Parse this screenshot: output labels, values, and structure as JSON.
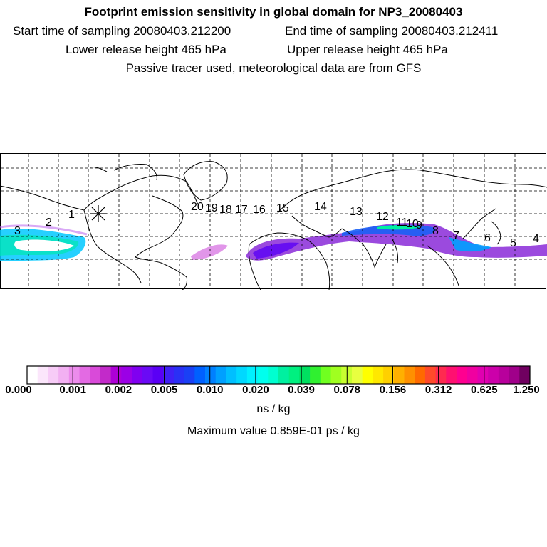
{
  "header": {
    "title": "Footprint emission sensitivity in global domain for NP3_20080403",
    "start_time": "Start time of sampling 20080403.212200",
    "end_time": "End time of sampling 20080403.212411",
    "lower_height": "Lower release height  465 hPa",
    "upper_height": "Upper release height  465 hPa",
    "tracer_note": "Passive tracer used, meteorological data are from GFS"
  },
  "map": {
    "receptor_marker": "asterisk-icon",
    "trajectory_labels": [
      "1",
      "2",
      "3",
      "4",
      "5",
      "6",
      "7",
      "8",
      "9",
      "10",
      "11",
      "12",
      "13",
      "14",
      "15",
      "16",
      "17",
      "18",
      "19",
      "20"
    ]
  },
  "colorbar": {
    "tick_labels": [
      "0.000",
      "0.001",
      "0.002",
      "0.005",
      "0.010",
      "0.020",
      "0.039",
      "0.078",
      "0.156",
      "0.312",
      "0.625",
      "1.250"
    ],
    "unit": "ns / kg",
    "max_value": "Maximum value  0.859E-01 ps / kg",
    "colors": [
      "#ffffff",
      "#fbe6fb",
      "#f7ccf7",
      "#f2b0f2",
      "#ec8cec",
      "#e36ae3",
      "#d94ad9",
      "#c22ac9",
      "#ad00d6",
      "#9b00e6",
      "#8000f0",
      "#6a0af5",
      "#5a00f5",
      "#4020f5",
      "#2a30f5",
      "#1a40f5",
      "#0060ff",
      "#0080ff",
      "#00a0ff",
      "#00bfff",
      "#00d8ff",
      "#00f0ff",
      "#00ffee",
      "#00ffd0",
      "#00f0a0",
      "#00f080",
      "#00e060",
      "#30f030",
      "#70ff20",
      "#a0ff20",
      "#c8ff30",
      "#e8ff40",
      "#ffff00",
      "#ffe800",
      "#ffd000",
      "#ffb000",
      "#ff9000",
      "#ff6a00",
      "#ff4a2a",
      "#ff2a50",
      "#ff1070",
      "#ff0090",
      "#f000a0",
      "#e000b0",
      "#cc00aa",
      "#b8009c",
      "#a0008a",
      "#700060"
    ]
  }
}
